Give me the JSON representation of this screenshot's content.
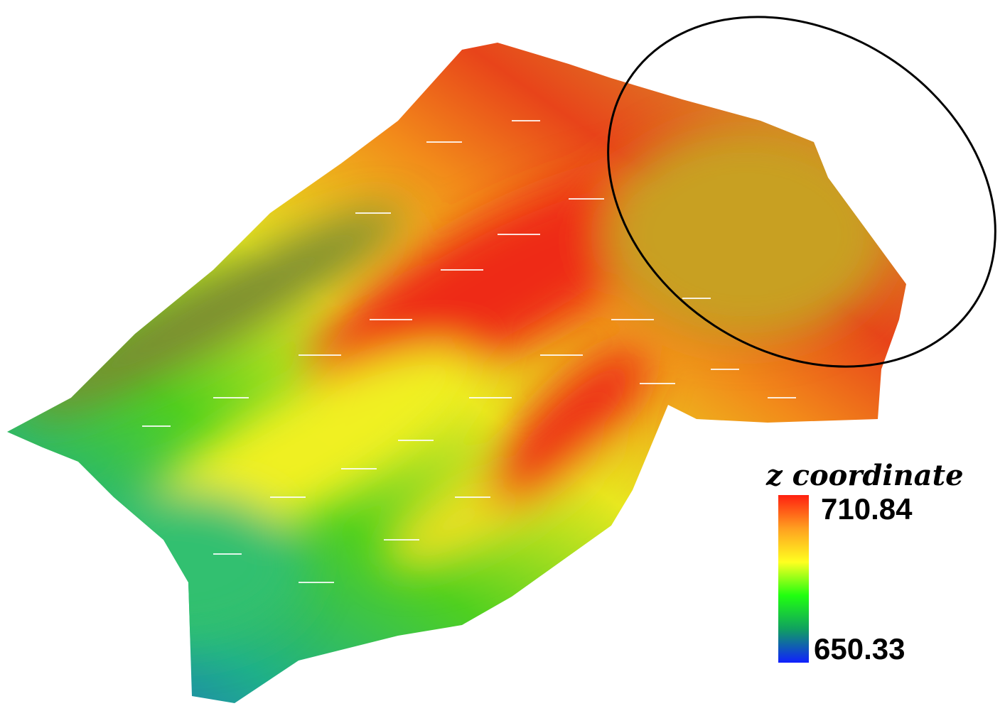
{
  "colorbar": {
    "title": "z coordinate",
    "max": 710.84,
    "min": 650.33
  }
}
